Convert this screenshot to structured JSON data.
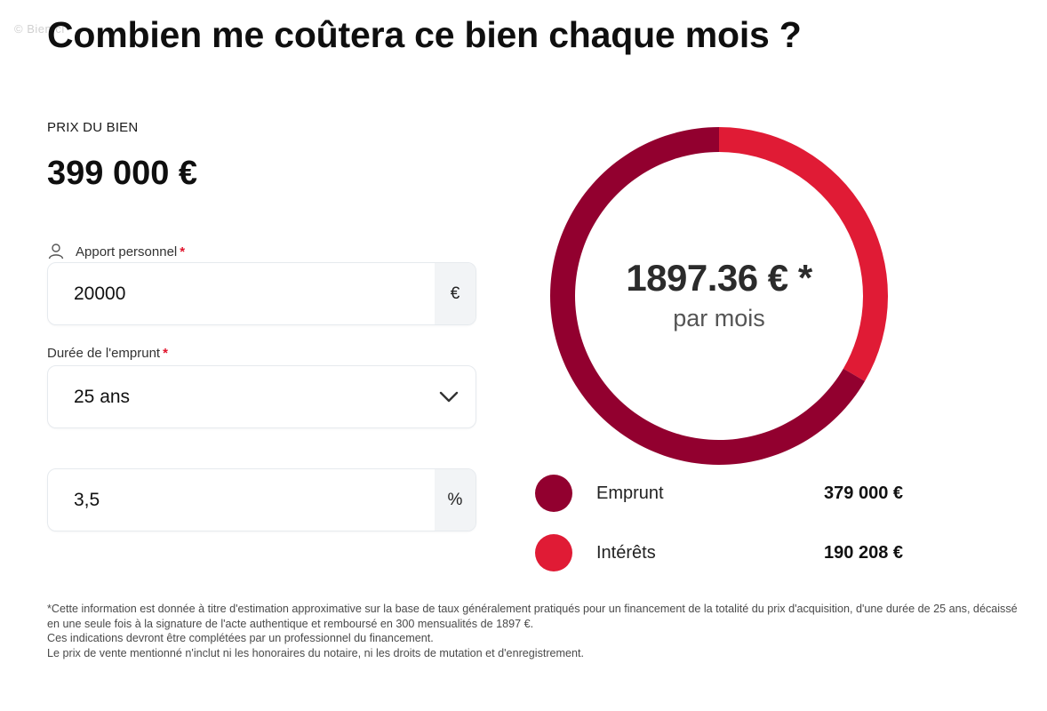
{
  "watermark": "© BienIci",
  "title": "Combien me coûtera ce bien chaque mois ?",
  "price": {
    "label": "PRIX DU BIEN",
    "value": "399 000 €"
  },
  "apport": {
    "label": "Apport personnel",
    "required_mark": "*",
    "value": "20000",
    "unit": "€"
  },
  "duree": {
    "label": "Durée de l'emprunt",
    "required_mark": "*",
    "selected": "25 ans"
  },
  "taux": {
    "value": "3,5",
    "unit": "%"
  },
  "result": {
    "monthly": "1897.36 € *",
    "per_month": "par mois"
  },
  "chart_data": {
    "type": "pie",
    "categories": [
      "Emprunt",
      "Intérêts"
    ],
    "values": [
      379000,
      190208
    ],
    "colors": [
      "#92002f",
      "#e01b35"
    ],
    "start_angle_deg": 0
  },
  "legend": [
    {
      "label": "Emprunt",
      "amount": "379 000 €",
      "color": "#92002f"
    },
    {
      "label": "Intérêts",
      "amount": "190 208 €",
      "color": "#e01b35"
    }
  ],
  "disclaimer": {
    "line1": "*Cette information est donnée à titre d'estimation approximative sur la base de taux généralement pratiqués pour un financement de la totalité du prix d'acquisition, d'une durée de 25 ans, décaissé en une seule fois à la signature de l'acte authentique et remboursé en 300 mensualités de 1897 €.",
    "line2": "Ces indications devront être complétées par un professionnel du financement.",
    "line3": "Le prix de vente mentionné n'inclut ni les honoraires du notaire, ni les droits de mutation et d'enregistrement."
  }
}
